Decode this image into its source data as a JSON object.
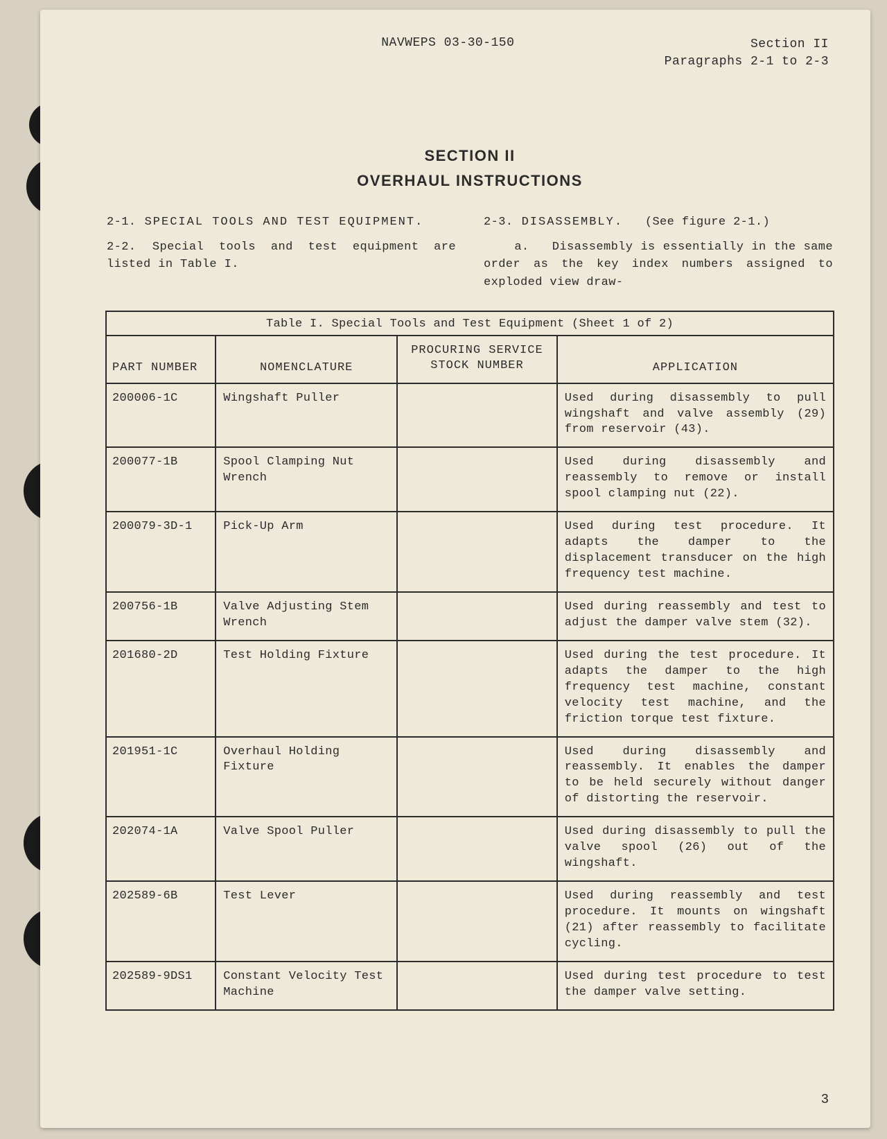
{
  "header": {
    "doc_id": "NAVWEPS 03-30-150",
    "section_label": "Section II",
    "para_range": "Paragraphs 2-1 to 2-3"
  },
  "section_head": {
    "title": "SECTION II",
    "subtitle": "OVERHAUL INSTRUCTIONS"
  },
  "left_col": {
    "p1_num": "2-1.",
    "p1_title": "SPECIAL TOOLS AND TEST EQUIPMENT.",
    "p2_num": "2-2.",
    "p2_body": "Special tools and test equipment are listed in Table I."
  },
  "right_col": {
    "p3_num": "2-3.",
    "p3_title": "DISASSEMBLY.",
    "p3_ref": "(See figure 2-1.)",
    "p3a_lead": "a.",
    "p3a_body": "Disassembly is essentially in the same order as the key index numbers assigned to exploded view draw-"
  },
  "table": {
    "caption": "Table I.  Special Tools and Test Equipment (Sheet 1 of 2)",
    "headers": {
      "part": "PART NUMBER",
      "nom": "NOMENCLATURE",
      "stock_l1": "PROCURING SERVICE",
      "stock_l2": "STOCK NUMBER",
      "app": "APPLICATION"
    },
    "rows": [
      {
        "part": "200006-1C",
        "nom": "Wingshaft Puller",
        "stock": "",
        "app": "Used during disassembly to pull wingshaft and valve assembly (29) from reservoir (43)."
      },
      {
        "part": "200077-1B",
        "nom": "Spool Clamping Nut Wrench",
        "stock": "",
        "app": "Used during disassembly and reassembly to remove or install spool clamping nut (22)."
      },
      {
        "part": "200079-3D-1",
        "nom": "Pick-Up Arm",
        "stock": "",
        "app": "Used during test procedure. It adapts the damper to the displacement transducer on the high frequency test machine."
      },
      {
        "part": "200756-1B",
        "nom": "Valve Adjusting Stem Wrench",
        "stock": "",
        "app": "Used during reassembly and test to adjust the damper valve stem (32)."
      },
      {
        "part": "201680-2D",
        "nom": "Test Holding Fixture",
        "stock": "",
        "app": "Used during the test procedure.  It adapts the damper to the high frequency test machine, constant velocity test machine, and the friction torque test fixture."
      },
      {
        "part": "201951-1C",
        "nom": "Overhaul Holding Fixture",
        "stock": "",
        "app": "Used during disassembly and reassembly. It enables the damper to be held securely without danger of distorting the reservoir."
      },
      {
        "part": "202074-1A",
        "nom": "Valve Spool Puller",
        "stock": "",
        "app": "Used during disassembly to pull the valve spool (26) out of the wingshaft."
      },
      {
        "part": "202589-6B",
        "nom": "Test Lever",
        "stock": "",
        "app": "Used during reassembly and test procedure.  It mounts on wingshaft (21) after reassembly to facilitate cycling."
      },
      {
        "part": "202589-9DS1",
        "nom": "Constant Velocity Test Machine",
        "stock": "",
        "app": "Used during test procedure to test the damper valve setting."
      }
    ]
  },
  "page_number": "3"
}
